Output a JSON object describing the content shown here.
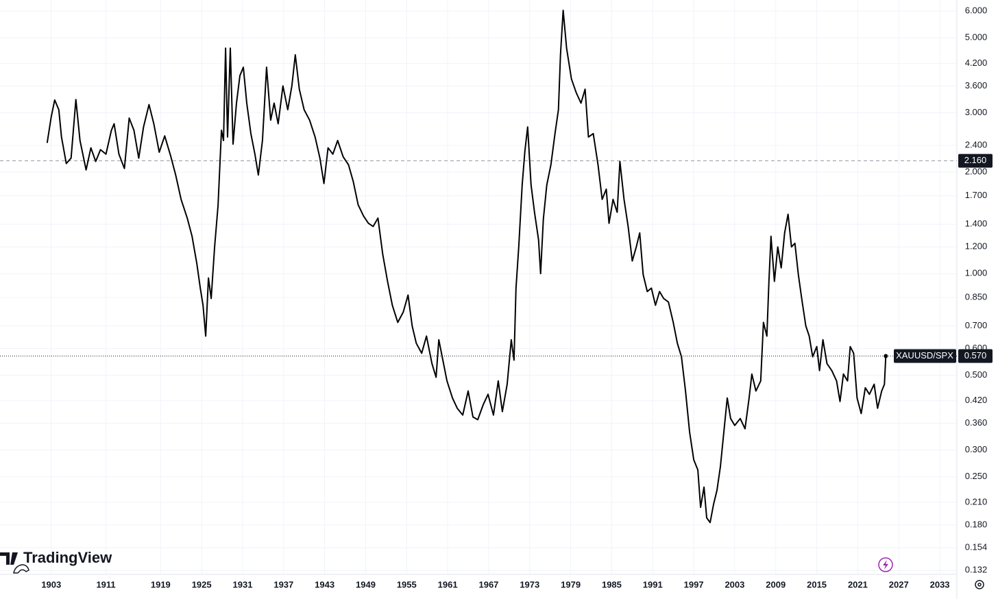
{
  "chart_data": {
    "type": "line",
    "yscale": "log",
    "grid": true,
    "watermark": "TradingView",
    "xlim": [
      1895.5,
      2035.5
    ],
    "xticks": [
      1903,
      1911,
      1919,
      1925,
      1931,
      1937,
      1943,
      1949,
      1955,
      1961,
      1967,
      1973,
      1979,
      1985,
      1991,
      1997,
      2003,
      2009,
      2015,
      2021,
      2027,
      2033
    ],
    "ylim": [
      0.1285,
      6.47
    ],
    "yticks": [
      {
        "value": 0.132,
        "label": "0.132"
      },
      {
        "value": 0.154,
        "label": "0.154"
      },
      {
        "value": 0.18,
        "label": "0.180"
      },
      {
        "value": 0.21,
        "label": "0.210"
      },
      {
        "value": 0.25,
        "label": "0.250"
      },
      {
        "value": 0.3,
        "label": "0.300"
      },
      {
        "value": 0.36,
        "label": "0.360"
      },
      {
        "value": 0.42,
        "label": "0.420"
      },
      {
        "value": 0.5,
        "label": "0.500"
      },
      {
        "value": 0.6,
        "label": "0.600"
      },
      {
        "value": 0.7,
        "label": "0.700"
      },
      {
        "value": 0.85,
        "label": "0.850"
      },
      {
        "value": 1,
        "label": "1.000"
      },
      {
        "value": 1.2,
        "label": "1.200"
      },
      {
        "value": 1.4,
        "label": "1.400"
      },
      {
        "value": 1.7,
        "label": "1.700"
      },
      {
        "value": 2,
        "label": "2.000"
      },
      {
        "value": 2.4,
        "label": "2.400"
      },
      {
        "value": 3,
        "label": "3.000"
      },
      {
        "value": 3.6,
        "label": "3.600"
      },
      {
        "value": 4.2,
        "label": "4.200"
      },
      {
        "value": 5,
        "label": "5.000"
      },
      {
        "value": 6,
        "label": "6.000"
      }
    ],
    "reference_line": {
      "value": 2.16,
      "label": "2.160"
    },
    "price_tag": {
      "value": 0.57,
      "label": "0.570"
    },
    "series": [
      {
        "name": "XAUUSD/SPX",
        "color": "#000000",
        "x": [
          1902.4,
          1903.0,
          1903.5,
          1904.1,
          1904.5,
          1905.2,
          1905.9,
          1906.6,
          1907.2,
          1908.1,
          1908.8,
          1909.5,
          1910.2,
          1911.0,
          1911.8,
          1912.2,
          1912.9,
          1913.7,
          1914.4,
          1915.1,
          1915.8,
          1916.5,
          1917.3,
          1918.0,
          1918.8,
          1919.6,
          1920.5,
          1921.2,
          1922.0,
          1922.9,
          1923.6,
          1924.3,
          1924.8,
          1925.2,
          1925.6,
          1926.0,
          1926.4,
          1926.9,
          1927.4,
          1927.9,
          1928.2,
          1928.5,
          1928.8,
          1929.2,
          1929.6,
          1930.1,
          1930.6,
          1931.1,
          1931.6,
          1932.2,
          1932.8,
          1933.3,
          1933.9,
          1934.5,
          1935.1,
          1935.6,
          1936.2,
          1936.9,
          1937.6,
          1938.2,
          1938.7,
          1939.3,
          1940.0,
          1940.8,
          1941.6,
          1942.3,
          1942.9,
          1943.5,
          1944.2,
          1944.9,
          1945.7,
          1946.5,
          1947.2,
          1947.9,
          1948.7,
          1949.4,
          1950.1,
          1950.8,
          1951.5,
          1952.2,
          1952.9,
          1953.7,
          1954.5,
          1955.2,
          1955.8,
          1956.4,
          1957.2,
          1957.9,
          1958.7,
          1959.3,
          1959.7,
          1960.3,
          1960.9,
          1961.7,
          1962.4,
          1963.2,
          1964.0,
          1964.7,
          1965.4,
          1966.2,
          1966.9,
          1967.7,
          1968.4,
          1969.0,
          1969.7,
          1970.3,
          1970.7,
          1971.0,
          1971.4,
          1971.9,
          1972.3,
          1972.7,
          1973.2,
          1973.7,
          1974.3,
          1974.6,
          1975.0,
          1975.5,
          1976.1,
          1976.7,
          1977.2,
          1977.5,
          1977.9,
          1978.4,
          1979.1,
          1979.8,
          1980.5,
          1981.1,
          1981.6,
          1982.3,
          1983.0,
          1983.6,
          1984.2,
          1984.6,
          1985.2,
          1985.8,
          1986.2,
          1986.8,
          1987.4,
          1988.0,
          1988.6,
          1989.1,
          1989.6,
          1990.2,
          1990.8,
          1991.4,
          1992.0,
          1992.6,
          1993.3,
          1994.0,
          1994.6,
          1995.2,
          1995.8,
          1996.4,
          1997.0,
          1997.6,
          1998.0,
          1998.5,
          1998.9,
          1999.4,
          1999.9,
          2000.4,
          2000.9,
          2001.4,
          2001.9,
          2002.4,
          2003.0,
          2003.8,
          2004.5,
          2005.1,
          2005.5,
          2006.1,
          2006.8,
          2007.2,
          2007.7,
          2008.0,
          2008.3,
          2008.8,
          2009.3,
          2009.8,
          2010.3,
          2010.8,
          2011.3,
          2011.8,
          2012.3,
          2012.8,
          2013.4,
          2013.9,
          2014.4,
          2015.0,
          2015.4,
          2015.9,
          2016.5,
          2017.2,
          2017.9,
          2018.4,
          2018.9,
          2019.5,
          2019.9,
          2020.4,
          2020.9,
          2021.5,
          2022.1,
          2022.7,
          2023.4,
          2023.9,
          2024.5,
          2024.9,
          2025.1
        ],
        "values": [
          2.44,
          2.92,
          3.27,
          3.06,
          2.54,
          2.12,
          2.2,
          3.28,
          2.48,
          2.03,
          2.36,
          2.15,
          2.33,
          2.26,
          2.66,
          2.78,
          2.26,
          2.05,
          2.89,
          2.66,
          2.2,
          2.72,
          3.17,
          2.78,
          2.29,
          2.56,
          2.22,
          1.96,
          1.66,
          1.46,
          1.29,
          1.07,
          0.906,
          0.806,
          0.653,
          0.971,
          0.844,
          1.2,
          1.59,
          2.66,
          2.48,
          4.66,
          2.54,
          4.66,
          2.42,
          3.2,
          3.86,
          4.09,
          3.2,
          2.6,
          2.26,
          1.96,
          2.48,
          4.09,
          2.85,
          3.2,
          2.78,
          3.6,
          3.06,
          3.6,
          4.45,
          3.52,
          3.06,
          2.85,
          2.54,
          2.2,
          1.85,
          2.36,
          2.26,
          2.48,
          2.22,
          2.1,
          1.87,
          1.6,
          1.48,
          1.41,
          1.38,
          1.46,
          1.14,
          0.949,
          0.806,
          0.717,
          0.769,
          0.864,
          0.7,
          0.622,
          0.581,
          0.653,
          0.541,
          0.493,
          0.637,
          0.554,
          0.481,
          0.428,
          0.399,
          0.381,
          0.449,
          0.376,
          0.369,
          0.409,
          0.439,
          0.381,
          0.481,
          0.39,
          0.47,
          0.637,
          0.554,
          0.906,
          1.2,
          1.83,
          2.31,
          2.72,
          1.83,
          1.52,
          1.26,
          1.0,
          1.45,
          1.83,
          2.1,
          2.6,
          3.06,
          4.45,
          6.03,
          4.66,
          3.78,
          3.44,
          3.2,
          3.52,
          2.54,
          2.6,
          2.1,
          1.66,
          1.78,
          1.41,
          1.66,
          1.52,
          2.15,
          1.66,
          1.38,
          1.09,
          1.2,
          1.32,
          0.994,
          0.885,
          0.906,
          0.806,
          0.885,
          0.844,
          0.824,
          0.717,
          0.622,
          0.567,
          0.449,
          0.339,
          0.281,
          0.262,
          0.203,
          0.233,
          0.189,
          0.183,
          0.207,
          0.228,
          0.268,
          0.339,
          0.428,
          0.372,
          0.355,
          0.372,
          0.347,
          0.428,
          0.504,
          0.449,
          0.481,
          0.717,
          0.653,
          0.949,
          1.29,
          0.949,
          1.2,
          1.04,
          1.32,
          1.5,
          1.2,
          1.23,
          0.994,
          0.844,
          0.7,
          0.653,
          0.567,
          0.608,
          0.516,
          0.637,
          0.541,
          0.516,
          0.481,
          0.418,
          0.504,
          0.481,
          0.608,
          0.581,
          0.428,
          0.385,
          0.459,
          0.439,
          0.47,
          0.399,
          0.449,
          0.47,
          0.57
        ]
      }
    ]
  }
}
